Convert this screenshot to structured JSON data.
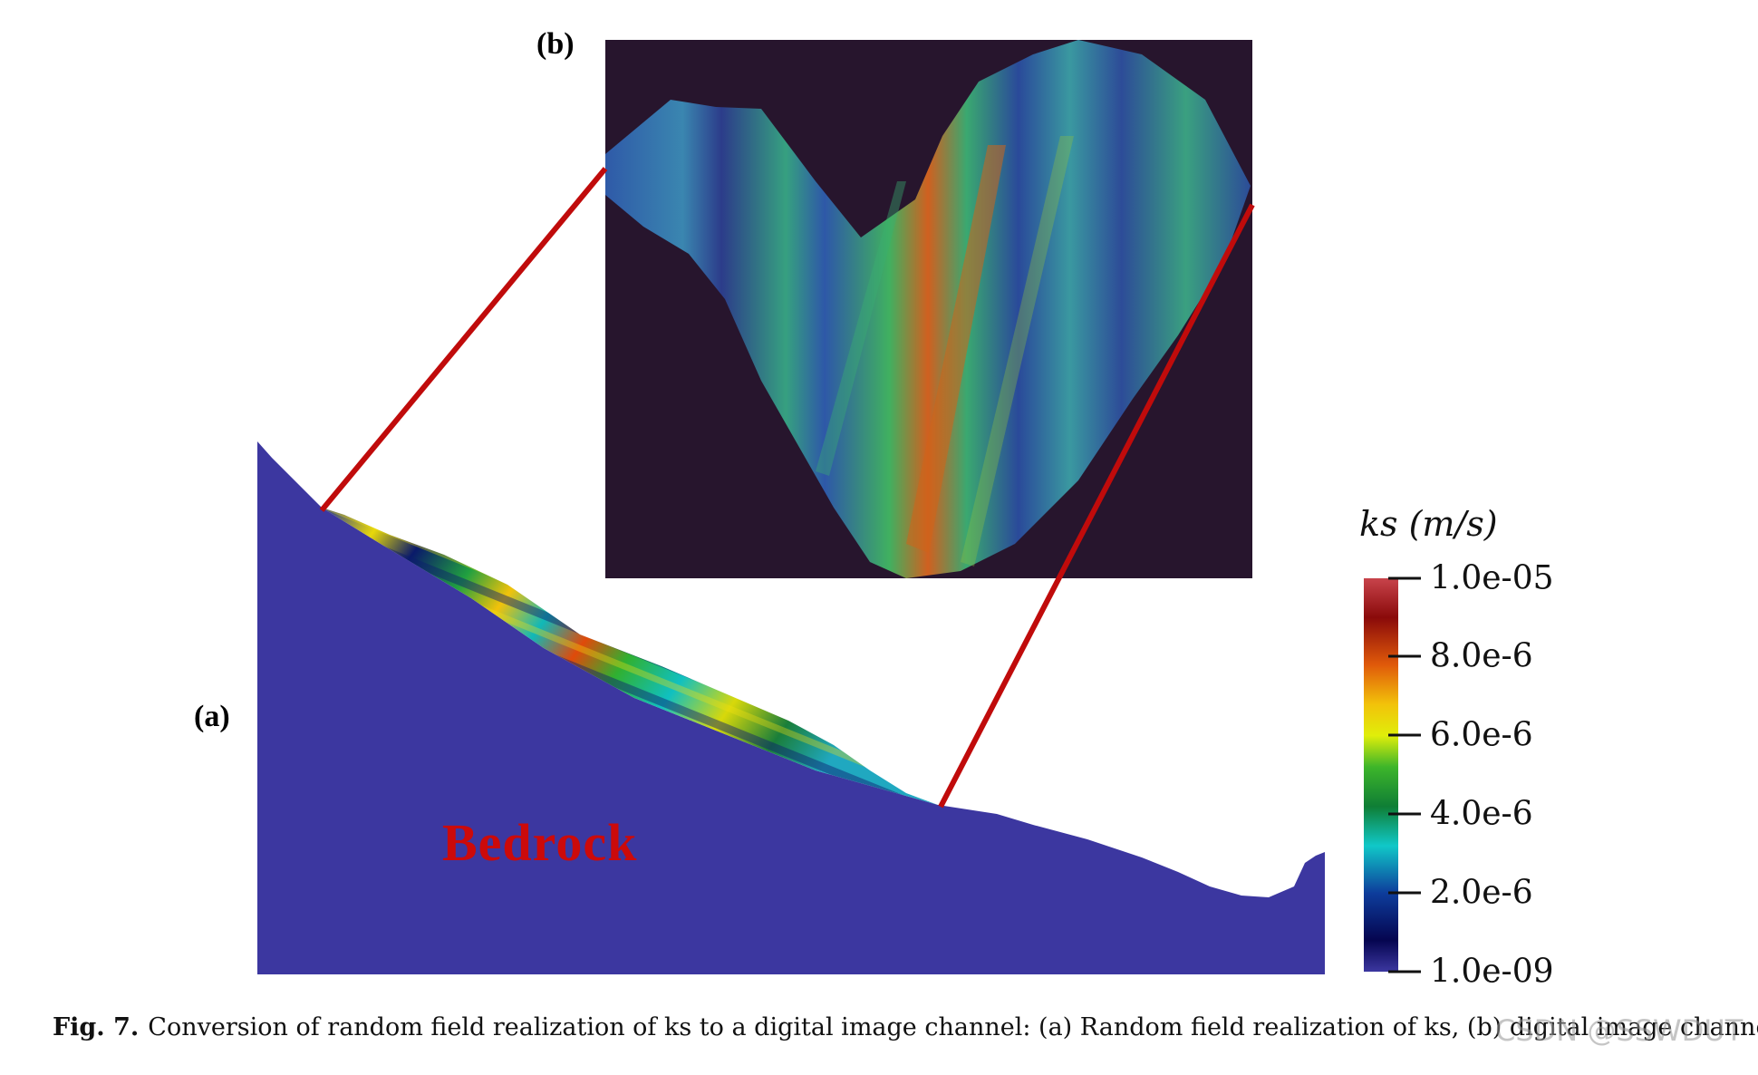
{
  "panels": {
    "a_label": "(a)",
    "b_label": "(b)",
    "bedrock_label": "Bedrock"
  },
  "colorbar": {
    "title": "ks (m/s)",
    "ticks": [
      "1.0e-05",
      "8.0e-6",
      "6.0e-6",
      "4.0e-6",
      "2.0e-6",
      "1.0e-09"
    ],
    "colors": [
      "#c8434b",
      "#8a0a0a",
      "#e05a0a",
      "#f2c20a",
      "#e0ee0a",
      "#3db52a",
      "#0f7e35",
      "#10c8c8",
      "#0d3d9c",
      "#050550",
      "#3c37a0"
    ]
  },
  "colors": {
    "bedrock": "#3c37a0",
    "zoom_background": "#27152d",
    "connector_lines": "#c00b0b",
    "bedrock_text": "#cc0a0a"
  },
  "caption": {
    "fig_no": "Fig. 7.",
    "text": "Conversion of random field realization of ks to a digital image channel: (a) Random field realization of ks, (b) digital image channel."
  },
  "watermark": "CSDN @SSWDUT"
}
